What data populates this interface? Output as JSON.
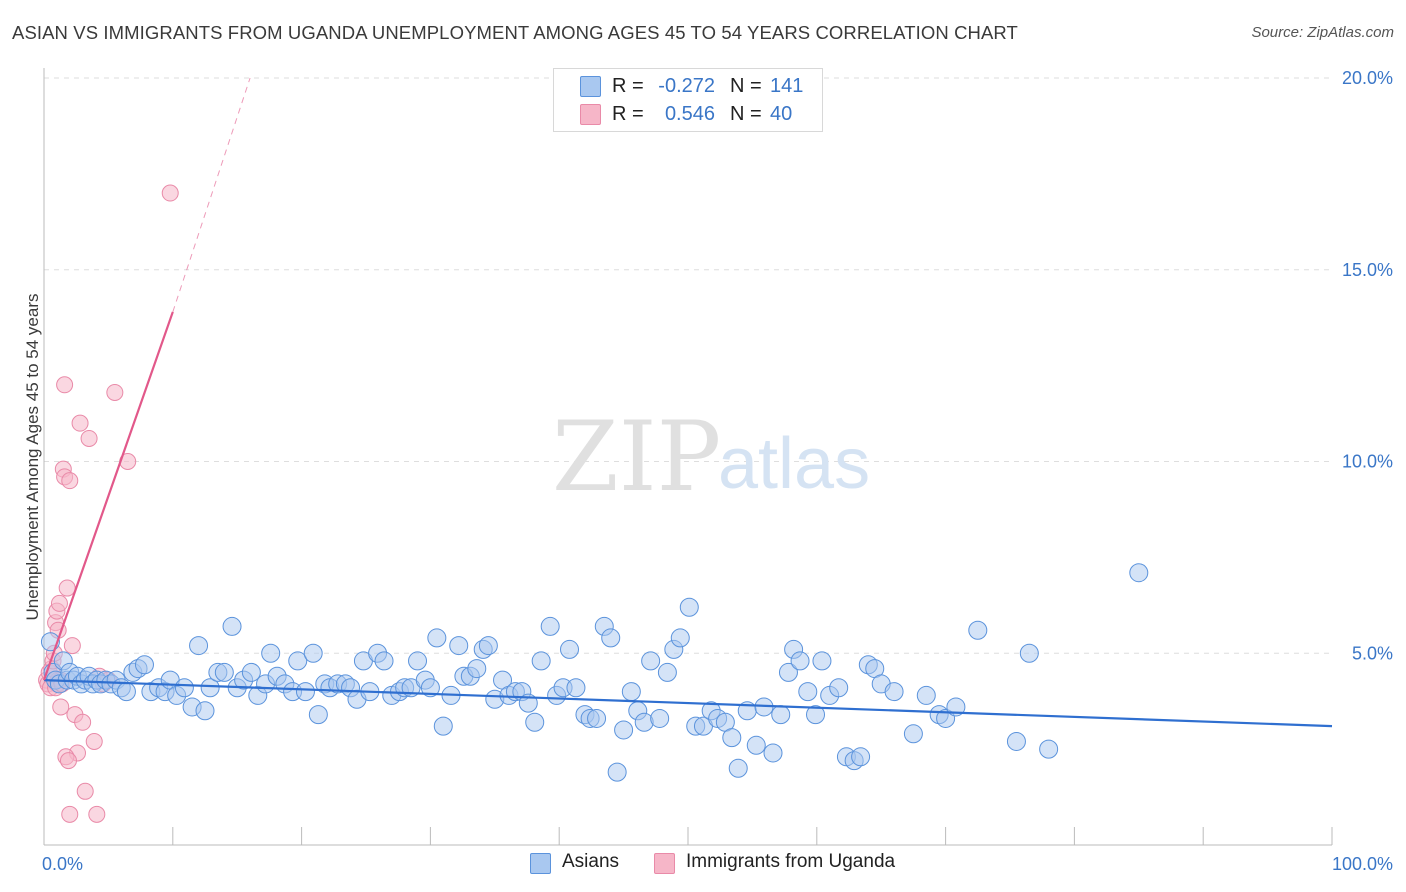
{
  "title": "ASIAN VS IMMIGRANTS FROM UGANDA UNEMPLOYMENT AMONG AGES 45 TO 54 YEARS CORRELATION CHART",
  "source": "Source: ZipAtlas.com",
  "watermark": {
    "zip": "ZIP",
    "atlas": "atlas"
  },
  "colors": {
    "asians_fill": "#a9c8f0",
    "asians_stroke": "#5b93dc",
    "asians_line": "#2f6fd0",
    "uganda_fill": "#f6b6c8",
    "uganda_stroke": "#e98aa8",
    "uganda_line": "#e2588a",
    "axis_text": "#3a76c7",
    "grid": "#dedede"
  },
  "legend": {
    "rows": [
      {
        "r_label": "R =",
        "r_value": "-0.272",
        "n_label": "N =",
        "n_value": "141"
      },
      {
        "r_label": "R =",
        "r_value": "0.546",
        "n_label": "N =",
        "n_value": "40"
      }
    ]
  },
  "bottom_legend": {
    "asians": "Asians",
    "uganda": "Immigrants from Uganda"
  },
  "chart_data": {
    "type": "scatter",
    "title": "ASIAN VS IMMIGRANTS FROM UGANDA UNEMPLOYMENT AMONG AGES 45 TO 54 YEARS CORRELATION CHART",
    "xlabel": "",
    "ylabel": "Unemployment Among Ages 45 to 54 years",
    "xlim": [
      0,
      100
    ],
    "ylim": [
      0,
      20
    ],
    "x_tick_labels": [
      "0.0%",
      "100.0%"
    ],
    "y_ticks": [
      5,
      10,
      15,
      20
    ],
    "y_tick_labels": [
      "5.0%",
      "10.0%",
      "15.0%",
      "20.0%"
    ],
    "grid": true,
    "series": [
      {
        "name": "Asians",
        "points": [
          [
            0.5,
            5.3
          ],
          [
            0.7,
            4.5
          ],
          [
            0.9,
            4.3
          ],
          [
            1.2,
            4.2
          ],
          [
            1.5,
            4.8
          ],
          [
            1.8,
            4.3
          ],
          [
            2.0,
            4.5
          ],
          [
            2.3,
            4.3
          ],
          [
            2.6,
            4.4
          ],
          [
            2.9,
            4.2
          ],
          [
            3.2,
            4.3
          ],
          [
            3.5,
            4.4
          ],
          [
            3.8,
            4.2
          ],
          [
            4.1,
            4.3
          ],
          [
            4.4,
            4.2
          ],
          [
            4.8,
            4.3
          ],
          [
            5.2,
            4.2
          ],
          [
            5.6,
            4.3
          ],
          [
            6.0,
            4.1
          ],
          [
            6.4,
            4.0
          ],
          [
            6.9,
            4.5
          ],
          [
            7.3,
            4.6
          ],
          [
            7.8,
            4.7
          ],
          [
            8.3,
            4.0
          ],
          [
            8.9,
            4.1
          ],
          [
            9.4,
            4.0
          ],
          [
            9.8,
            4.3
          ],
          [
            10.3,
            3.9
          ],
          [
            10.9,
            4.1
          ],
          [
            11.5,
            3.6
          ],
          [
            12.0,
            5.2
          ],
          [
            12.5,
            3.5
          ],
          [
            12.9,
            4.1
          ],
          [
            13.5,
            4.5
          ],
          [
            14.0,
            4.5
          ],
          [
            14.6,
            5.7
          ],
          [
            15.0,
            4.1
          ],
          [
            15.5,
            4.3
          ],
          [
            16.1,
            4.5
          ],
          [
            16.6,
            3.9
          ],
          [
            17.2,
            4.2
          ],
          [
            17.6,
            5.0
          ],
          [
            18.1,
            4.4
          ],
          [
            18.7,
            4.2
          ],
          [
            19.3,
            4.0
          ],
          [
            19.7,
            4.8
          ],
          [
            20.3,
            4.0
          ],
          [
            20.9,
            5.0
          ],
          [
            21.3,
            3.4
          ],
          [
            21.8,
            4.2
          ],
          [
            22.2,
            4.1
          ],
          [
            22.8,
            4.2
          ],
          [
            23.4,
            4.2
          ],
          [
            23.8,
            4.1
          ],
          [
            24.3,
            3.8
          ],
          [
            24.8,
            4.8
          ],
          [
            25.3,
            4.0
          ],
          [
            25.9,
            5.0
          ],
          [
            26.4,
            4.8
          ],
          [
            27.0,
            3.9
          ],
          [
            27.6,
            4.0
          ],
          [
            28.0,
            4.1
          ],
          [
            28.5,
            4.1
          ],
          [
            29.0,
            4.8
          ],
          [
            29.6,
            4.3
          ],
          [
            30.0,
            4.1
          ],
          [
            30.5,
            5.4
          ],
          [
            31.0,
            3.1
          ],
          [
            31.6,
            3.9
          ],
          [
            32.2,
            5.2
          ],
          [
            32.6,
            4.4
          ],
          [
            33.1,
            4.4
          ],
          [
            33.6,
            4.6
          ],
          [
            34.1,
            5.1
          ],
          [
            34.5,
            5.2
          ],
          [
            35.0,
            3.8
          ],
          [
            35.6,
            4.3
          ],
          [
            36.1,
            3.9
          ],
          [
            36.6,
            4.0
          ],
          [
            37.1,
            4.0
          ],
          [
            37.6,
            3.7
          ],
          [
            38.1,
            3.2
          ],
          [
            38.6,
            4.8
          ],
          [
            39.3,
            5.7
          ],
          [
            39.8,
            3.9
          ],
          [
            40.3,
            4.1
          ],
          [
            40.8,
            5.1
          ],
          [
            41.3,
            4.1
          ],
          [
            42.0,
            3.4
          ],
          [
            42.4,
            3.3
          ],
          [
            42.9,
            3.3
          ],
          [
            43.5,
            5.7
          ],
          [
            44.0,
            5.4
          ],
          [
            44.5,
            1.9
          ],
          [
            45.0,
            3.0
          ],
          [
            45.6,
            4.0
          ],
          [
            46.1,
            3.5
          ],
          [
            46.6,
            3.2
          ],
          [
            47.1,
            4.8
          ],
          [
            47.8,
            3.3
          ],
          [
            48.4,
            4.5
          ],
          [
            48.9,
            5.1
          ],
          [
            49.4,
            5.4
          ],
          [
            50.1,
            6.2
          ],
          [
            50.6,
            3.1
          ],
          [
            51.2,
            3.1
          ],
          [
            51.8,
            3.5
          ],
          [
            52.3,
            3.3
          ],
          [
            52.9,
            3.2
          ],
          [
            53.4,
            2.8
          ],
          [
            53.9,
            2.0
          ],
          [
            54.6,
            3.5
          ],
          [
            55.3,
            2.6
          ],
          [
            55.9,
            3.6
          ],
          [
            56.6,
            2.4
          ],
          [
            57.2,
            3.4
          ],
          [
            57.8,
            4.5
          ],
          [
            58.2,
            5.1
          ],
          [
            58.7,
            4.8
          ],
          [
            59.3,
            4.0
          ],
          [
            59.9,
            3.4
          ],
          [
            60.4,
            4.8
          ],
          [
            61.0,
            3.9
          ],
          [
            61.7,
            4.1
          ],
          [
            62.3,
            2.3
          ],
          [
            62.9,
            2.2
          ],
          [
            63.4,
            2.3
          ],
          [
            64.0,
            4.7
          ],
          [
            64.5,
            4.6
          ],
          [
            65.0,
            4.2
          ],
          [
            66.0,
            4.0
          ],
          [
            67.5,
            2.9
          ],
          [
            68.5,
            3.9
          ],
          [
            69.5,
            3.4
          ],
          [
            70.0,
            3.3
          ],
          [
            70.8,
            3.6
          ],
          [
            72.5,
            5.6
          ],
          [
            75.5,
            2.7
          ],
          [
            76.5,
            5.0
          ],
          [
            78.0,
            2.5
          ],
          [
            85.0,
            7.1
          ]
        ]
      },
      {
        "name": "Immigrants from Uganda",
        "points": [
          [
            0.2,
            4.3
          ],
          [
            0.3,
            4.2
          ],
          [
            0.4,
            4.5
          ],
          [
            0.5,
            4.1
          ],
          [
            0.6,
            4.6
          ],
          [
            0.7,
            4.8
          ],
          [
            0.8,
            5.0
          ],
          [
            0.9,
            5.8
          ],
          [
            1.0,
            6.1
          ],
          [
            1.1,
            5.6
          ],
          [
            1.2,
            6.3
          ],
          [
            1.0,
            4.2
          ],
          [
            1.1,
            4.3
          ],
          [
            0.9,
            4.1
          ],
          [
            1.3,
            4.3
          ],
          [
            1.4,
            4.2
          ],
          [
            1.5,
            9.8
          ],
          [
            1.6,
            9.6
          ],
          [
            1.6,
            12.0
          ],
          [
            1.8,
            6.7
          ],
          [
            2.0,
            9.5
          ],
          [
            2.2,
            5.2
          ],
          [
            2.4,
            3.4
          ],
          [
            2.6,
            2.4
          ],
          [
            2.8,
            11.0
          ],
          [
            3.0,
            3.2
          ],
          [
            3.2,
            1.4
          ],
          [
            3.5,
            10.6
          ],
          [
            3.9,
            2.7
          ],
          [
            4.1,
            0.8
          ],
          [
            4.3,
            4.4
          ],
          [
            4.6,
            4.2
          ],
          [
            5.0,
            4.3
          ],
          [
            5.5,
            11.8
          ],
          [
            6.5,
            10.0
          ],
          [
            9.8,
            17.0
          ],
          [
            1.3,
            3.6
          ],
          [
            1.7,
            2.3
          ],
          [
            2.0,
            0.8
          ],
          [
            1.9,
            2.2
          ]
        ]
      }
    ],
    "trend_lines": [
      {
        "series": "Asians",
        "x": [
          0,
          100
        ],
        "y": [
          4.3,
          3.1
        ]
      },
      {
        "series": "Immigrants from Uganda",
        "x": [
          0,
          10
        ],
        "y": [
          4.3,
          13.9
        ],
        "extension_to": [
          16.0,
          20.0
        ],
        "extension_style": "dashed"
      }
    ]
  }
}
